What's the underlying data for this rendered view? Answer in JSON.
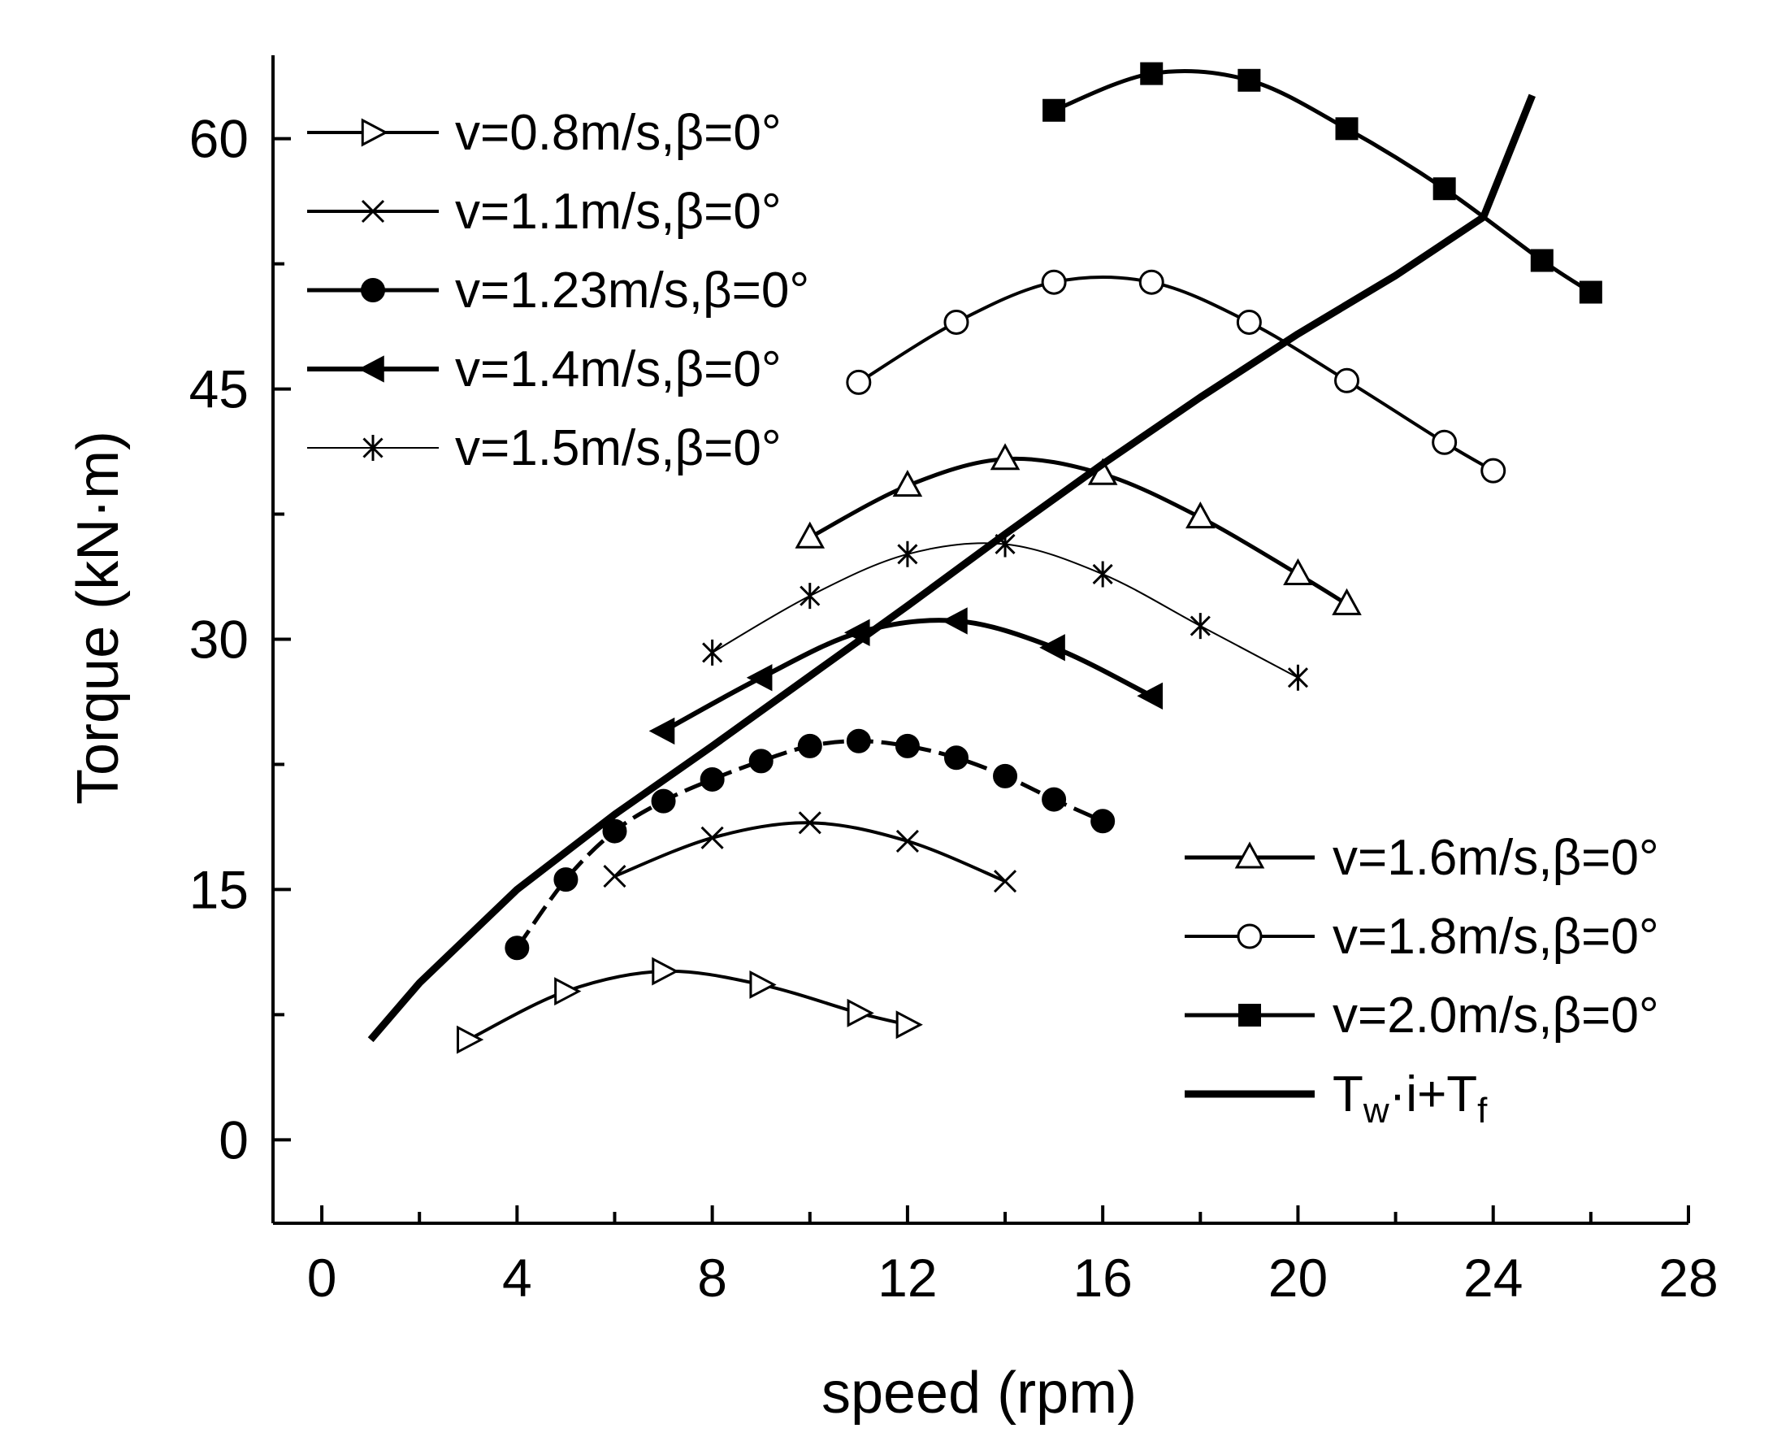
{
  "chart_data": {
    "type": "line",
    "title": "",
    "xlabel": "speed (rpm)",
    "ylabel": "Torque (kN·m)",
    "xlim": [
      -1,
      28
    ],
    "ylim": [
      -5,
      65
    ],
    "xticks": [
      0,
      4,
      8,
      12,
      16,
      20,
      24,
      28
    ],
    "yticks": [
      0,
      15,
      30,
      45,
      60
    ],
    "grid": false,
    "series": [
      {
        "name": "v=0.8m/s,β=0°",
        "marker": "triangle-right-open",
        "stroke": 4,
        "x": [
          3,
          5,
          7,
          9,
          11,
          12
        ],
        "y": [
          6.0,
          8.9,
          10.1,
          9.3,
          7.6,
          6.9
        ]
      },
      {
        "name": "v=1.1m/s,β=0°",
        "marker": "x",
        "stroke": 4,
        "x": [
          6,
          8,
          10,
          12,
          14
        ],
        "y": [
          15.8,
          18.1,
          19.0,
          17.9,
          15.5
        ]
      },
      {
        "name": "v=1.23m/s,β=0°",
        "marker": "circle-filled",
        "stroke": 5,
        "dash": true,
        "x": [
          4,
          5,
          6,
          7,
          8,
          9,
          10,
          11,
          12,
          13,
          14,
          15,
          16
        ],
        "y": [
          11.5,
          15.6,
          18.5,
          20.3,
          21.6,
          22.7,
          23.6,
          23.9,
          23.6,
          22.9,
          21.8,
          20.4,
          19.1
        ]
      },
      {
        "name": "v=1.4m/s,β=0°",
        "marker": "triangle-left-filled",
        "stroke": 6,
        "x": [
          7,
          9,
          11,
          13,
          15,
          17
        ],
        "y": [
          24.5,
          27.7,
          30.4,
          31.1,
          29.5,
          26.6
        ]
      },
      {
        "name": "v=1.5m/s,β=0°",
        "marker": "asterisk",
        "stroke": 2,
        "x": [
          8,
          10,
          12,
          14,
          16,
          18,
          20
        ],
        "y": [
          29.2,
          32.6,
          35.1,
          35.7,
          33.9,
          30.8,
          27.7
        ]
      },
      {
        "name": "v=1.6m/s,β=0°",
        "marker": "triangle-up-open",
        "stroke": 5,
        "x": [
          10,
          12,
          14,
          16,
          18,
          20,
          21
        ],
        "y": [
          36.1,
          39.2,
          40.8,
          39.9,
          37.3,
          33.9,
          32.1
        ]
      },
      {
        "name": "v=1.8m/s,β=0°",
        "marker": "circle-open",
        "stroke": 4,
        "x": [
          11,
          13,
          15,
          17,
          19,
          21,
          23,
          24
        ],
        "y": [
          45.4,
          49.0,
          51.4,
          51.4,
          49.0,
          45.5,
          41.8,
          40.1
        ]
      },
      {
        "name": "v=2.0m/s,β=0°",
        "marker": "square-filled",
        "stroke": 5,
        "x": [
          15,
          17,
          19,
          21,
          23,
          25,
          26
        ],
        "y": [
          61.7,
          63.9,
          63.5,
          60.6,
          57.0,
          52.7,
          50.8
        ]
      },
      {
        "name": "Tw·i+Tf",
        "marker": "none",
        "stroke": 9,
        "x": [
          1,
          2,
          4,
          6,
          8,
          10,
          12,
          14,
          16,
          18,
          20,
          22,
          23.8,
          24.8
        ],
        "y": [
          6.0,
          9.4,
          15.0,
          19.5,
          23.6,
          27.8,
          32.0,
          36.3,
          40.5,
          44.5,
          48.3,
          51.8,
          55.3,
          62.6
        ]
      }
    ],
    "legend_left": {
      "placement": "top-left",
      "entries": [
        "v=0.8m/s,β=0°",
        "v=1.1m/s,β=0°",
        "v=1.23m/s,β=0°",
        "v=1.4m/s,β=0°",
        "v=1.5m/s,β=0°"
      ]
    },
    "legend_right": {
      "placement": "bottom-right",
      "entries": [
        "v=1.6m/s,β=0°",
        "v=1.8m/s,β=0°",
        "v=2.0m/s,β=0°"
      ],
      "formula": {
        "a": "T",
        "a_sub": "w",
        "b": "·i+T",
        "b_sub": "f"
      }
    }
  }
}
